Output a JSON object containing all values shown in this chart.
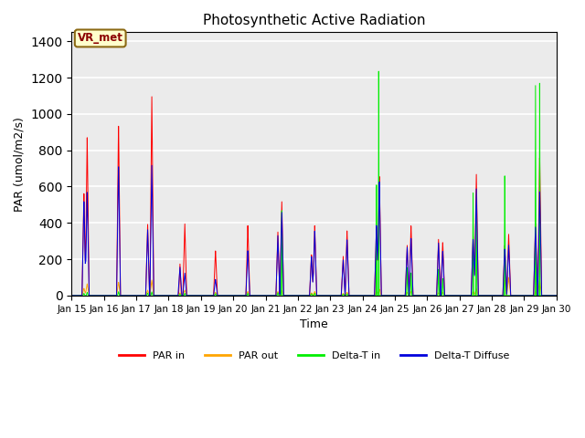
{
  "title": "Photosynthetic Active Radiation",
  "xlabel": "Time",
  "ylabel": "PAR (umol/m2/s)",
  "annotation": "VR_met",
  "ylim": [
    0,
    1450
  ],
  "yticks": [
    0,
    200,
    400,
    600,
    800,
    1000,
    1200,
    1400
  ],
  "colors": {
    "PAR in": "#ff0000",
    "PAR out": "#ffa500",
    "Delta-T in": "#00ee00",
    "Delta-T Diffuse": "#0000dd"
  },
  "legend_labels": [
    "PAR in",
    "PAR out",
    "Delta-T in",
    "Delta-T Diffuse"
  ],
  "axes_facecolor": "#ebebeb",
  "n_days": 15,
  "xtick_start_day": 15,
  "xtick_month": "Jan"
}
